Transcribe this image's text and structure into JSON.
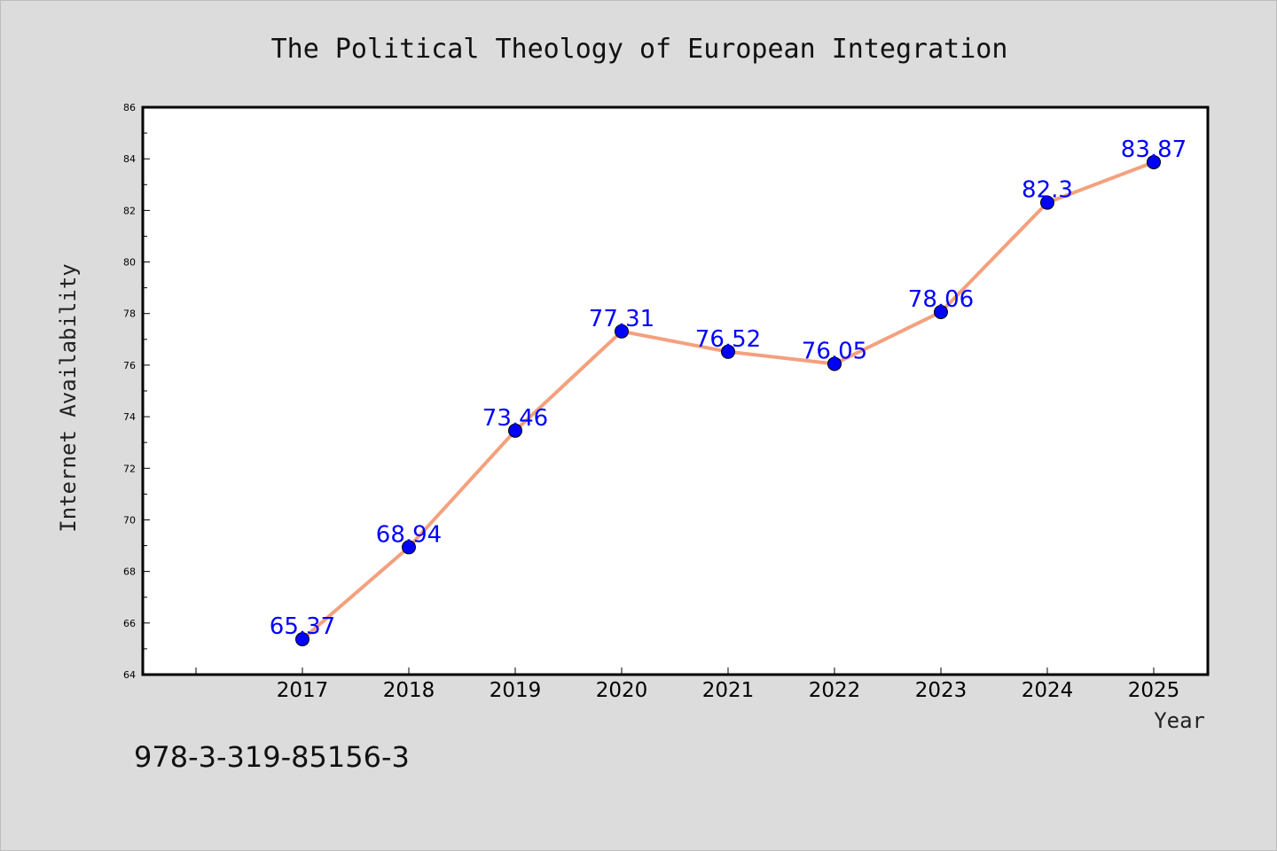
{
  "chart_data": {
    "type": "line",
    "title": "The Political Theology of European Integration",
    "xlabel": "Year",
    "ylabel": "Internet Availability",
    "categories": [
      "2017",
      "2018",
      "2019",
      "2020",
      "2021",
      "2022",
      "2023",
      "2024",
      "2025"
    ],
    "series": [
      {
        "values": [
          65.37,
          68.94,
          73.46,
          77.31,
          76.52,
          76.05,
          78.06,
          82.3,
          83.87
        ],
        "labels": [
          "65.37",
          "68.94",
          "73.46",
          "77.31",
          "76.52",
          "76.05",
          "78.06",
          "82.3",
          "83.87"
        ],
        "color": "#f4a07e",
        "marker_color": "#0000ff"
      }
    ],
    "ylim": [
      64,
      86
    ],
    "yticks": [
      "64",
      "66",
      "68",
      "70",
      "72",
      "74",
      "76",
      "78",
      "80",
      "82",
      "84",
      "86"
    ],
    "grid": false,
    "legend": "none"
  },
  "footer": {
    "isbn": "978-3-319-85156-3"
  },
  "colors": {
    "background": "#dcdcdc",
    "plot_background": "#ffffff",
    "line": "#f4a07e",
    "marker": "#0000ff",
    "data_label": "#0000ff"
  }
}
